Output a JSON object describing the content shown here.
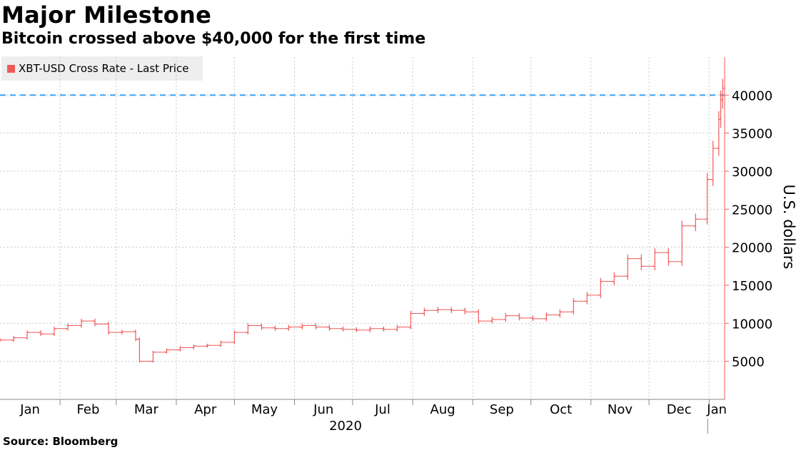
{
  "title": "Major Milestone",
  "subtitle": "Bitcoin crossed above $40,000 for the first time",
  "source": "Source: Bloomberg",
  "colors": {
    "series": "#f05a5a",
    "reference": "#39a0f0",
    "grid": "#c8c8c8"
  },
  "chart_data": {
    "type": "line",
    "style": "OHLC bars",
    "legend": [
      "XBT-USD Cross Rate - Last Price"
    ],
    "legend_position": "top-left",
    "ylabel": "U.S. dollars",
    "yaxis_side": "right",
    "ylim": [
      0,
      45000
    ],
    "yticks": [
      5000,
      10000,
      15000,
      20000,
      25000,
      30000,
      35000,
      40000
    ],
    "ytick_labels": [
      "5000",
      "10000",
      "15000",
      "20000",
      "25000",
      "30000",
      "35000",
      "40000"
    ],
    "xtick_labels": [
      "Jan",
      "Feb",
      "Mar",
      "Apr",
      "May",
      "Jun",
      "Jul",
      "Aug",
      "Sep",
      "Oct",
      "Nov",
      "Dec",
      "Jan"
    ],
    "year_label": "2020",
    "grid": true,
    "reference_line": {
      "value": 40000,
      "style": "dashed"
    },
    "series": [
      {
        "name": "XBT-USD Cross Rate - Last Price",
        "x": [
          "2020-01-01",
          "2020-01-08",
          "2020-01-15",
          "2020-01-22",
          "2020-01-29",
          "2020-02-05",
          "2020-02-12",
          "2020-02-19",
          "2020-02-26",
          "2020-03-04",
          "2020-03-11",
          "2020-03-13",
          "2020-03-20",
          "2020-03-27",
          "2020-04-03",
          "2020-04-10",
          "2020-04-17",
          "2020-04-24",
          "2020-05-01",
          "2020-05-08",
          "2020-05-15",
          "2020-05-22",
          "2020-05-29",
          "2020-06-05",
          "2020-06-12",
          "2020-06-19",
          "2020-06-26",
          "2020-07-03",
          "2020-07-10",
          "2020-07-17",
          "2020-07-24",
          "2020-07-31",
          "2020-08-07",
          "2020-08-14",
          "2020-08-21",
          "2020-08-28",
          "2020-09-04",
          "2020-09-11",
          "2020-09-18",
          "2020-09-25",
          "2020-10-02",
          "2020-10-09",
          "2020-10-16",
          "2020-10-23",
          "2020-10-30",
          "2020-11-06",
          "2020-11-13",
          "2020-11-20",
          "2020-11-27",
          "2020-12-04",
          "2020-12-11",
          "2020-12-18",
          "2020-12-25",
          "2020-12-31",
          "2021-01-03",
          "2021-01-06",
          "2021-01-07",
          "2021-01-08"
        ],
        "values": [
          7800,
          8100,
          8800,
          8600,
          9300,
          9700,
          10300,
          9900,
          8800,
          8900,
          7900,
          5000,
          6200,
          6500,
          6800,
          7000,
          7100,
          7500,
          8800,
          9700,
          9400,
          9300,
          9500,
          9700,
          9500,
          9300,
          9200,
          9100,
          9300,
          9200,
          9500,
          11300,
          11700,
          11800,
          11700,
          11500,
          10300,
          10500,
          11000,
          10700,
          10600,
          11100,
          11500,
          12900,
          13700,
          15500,
          16200,
          18500,
          17500,
          19300,
          18100,
          22800,
          23700,
          28900,
          33000,
          36800,
          39400,
          40900
        ]
      }
    ]
  }
}
